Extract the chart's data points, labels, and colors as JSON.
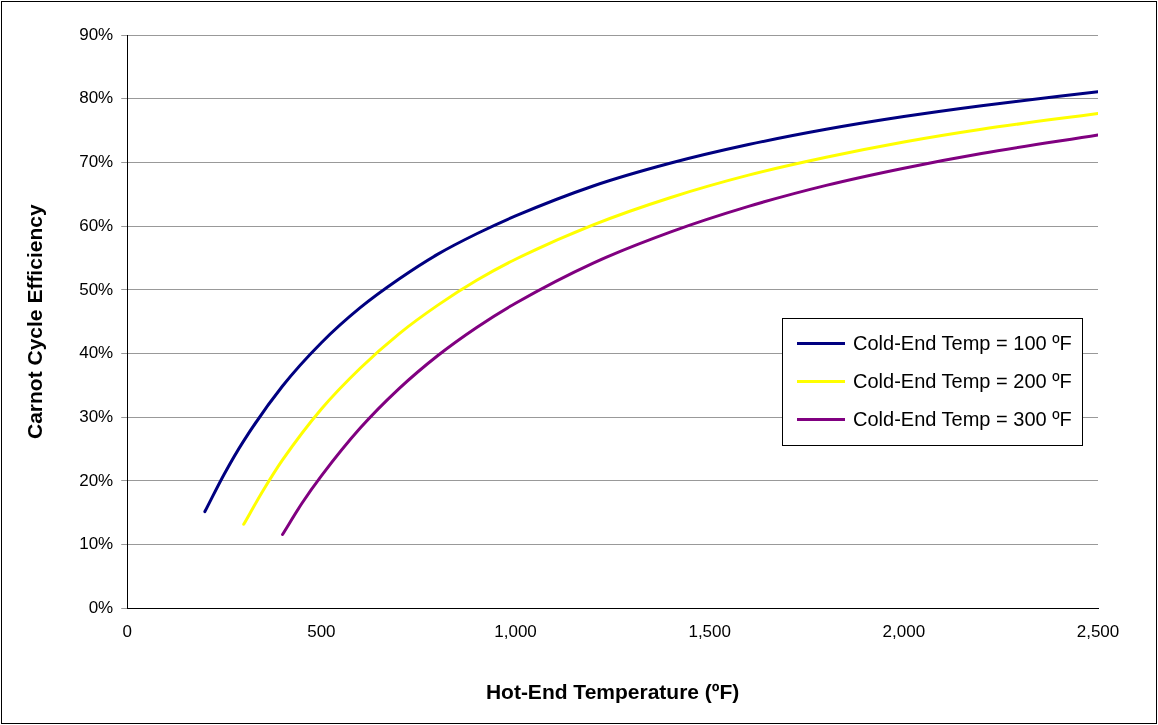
{
  "chart_data": {
    "type": "line",
    "xlabel": "Hot-End Temperature (ºF)",
    "ylabel": "Carnot Cycle Efficiency",
    "xlim": [
      0,
      2500
    ],
    "xticks": [
      0,
      500,
      {
        "value": 1000,
        "label": "1,000"
      },
      {
        "value": 1500,
        "label": "1,500"
      },
      {
        "value": 2000,
        "label": "2,000"
      },
      {
        "value": 2500,
        "label": "2,500"
      }
    ],
    "ylim": [
      0,
      90
    ],
    "yticks": [
      {
        "value": 0,
        "label": "0%"
      },
      {
        "value": 10,
        "label": "10%"
      },
      {
        "value": 20,
        "label": "20%"
      },
      {
        "value": 30,
        "label": "30%"
      },
      {
        "value": 40,
        "label": "40%"
      },
      {
        "value": 50,
        "label": "50%"
      },
      {
        "value": 60,
        "label": "60%"
      },
      {
        "value": 70,
        "label": "70%"
      },
      {
        "value": 80,
        "label": "80%"
      },
      {
        "value": 90,
        "label": "90%"
      }
    ],
    "grid": "y",
    "legend": "right",
    "marker": "none",
    "line_style": "solid",
    "series": [
      {
        "name": "Cold-End Temp = 100 ºF",
        "color": "#000080",
        "x": [
          200,
          250,
          300,
          400,
          500,
          600,
          700,
          800,
          900,
          1000,
          1200,
          1400,
          1600,
          1800,
          2000,
          2200,
          2500
        ],
        "values": [
          15.2,
          21.1,
          26.3,
          34.9,
          41.7,
          47.2,
          51.7,
          55.6,
          58.8,
          61.6,
          66.3,
          69.9,
          72.8,
          75.2,
          77.2,
          78.9,
          81.1
        ]
      },
      {
        "name": "Cold-End Temp = 200 ºF",
        "color": "#ffff00",
        "x": [
          300,
          350,
          400,
          500,
          600,
          700,
          800,
          900,
          1000,
          1200,
          1400,
          1600,
          1800,
          2000,
          2200,
          2500
        ],
        "values": [
          13.2,
          18.5,
          23.3,
          31.3,
          37.7,
          43.1,
          47.6,
          51.5,
          54.8,
          60.2,
          64.5,
          68.0,
          70.8,
          73.2,
          75.2,
          77.7
        ]
      },
      {
        "name": "Cold-End Temp = 300 ºF",
        "color": "#800080",
        "x": [
          400,
          450,
          500,
          600,
          700,
          800,
          900,
          1000,
          1200,
          1400,
          1600,
          1800,
          2000,
          2200,
          2500
        ],
        "values": [
          11.6,
          16.5,
          20.8,
          28.3,
          34.5,
          39.7,
          44.1,
          47.9,
          54.2,
          59.1,
          63.1,
          66.4,
          69.1,
          71.4,
          74.3
        ]
      }
    ]
  }
}
